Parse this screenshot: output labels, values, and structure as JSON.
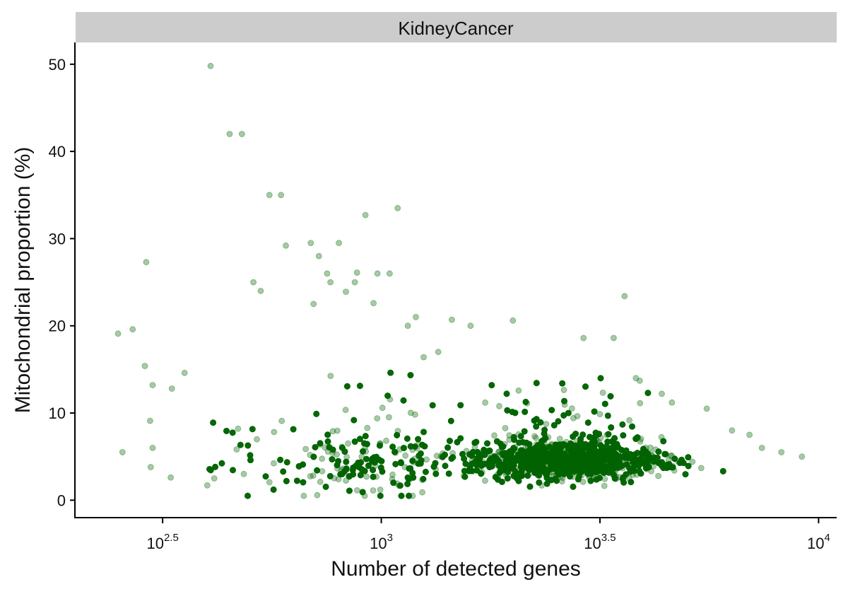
{
  "chart_data": {
    "type": "scatter",
    "facet_label": "KidneyCancer",
    "xlabel": "Number of detected genes",
    "ylabel": "Mitochondrial proportion (%)",
    "x_scale": "log10",
    "xlim": [
      200,
      11000
    ],
    "ylim": [
      -2,
      52.5
    ],
    "x_ticks": [
      {
        "value": 316.23,
        "base": "10",
        "exp": "2.5"
      },
      {
        "value": 1000,
        "base": "10",
        "exp": "3"
      },
      {
        "value": 3162.28,
        "base": "10",
        "exp": "3.5"
      },
      {
        "value": 10000,
        "base": "10",
        "exp": "4"
      }
    ],
    "y_ticks": [
      0,
      10,
      20,
      30,
      40,
      50
    ],
    "y_tick_labels": [
      "0",
      "10",
      "20",
      "30",
      "40",
      "50"
    ],
    "grid": false,
    "point_color": "#006400",
    "point_alpha": 0.35,
    "series": [
      {
        "x": [
          407,
          450,
          480,
          290,
          590,
          555,
          1090,
          920,
          800,
          690,
          720,
          752,
          765,
          1045,
          880,
          980,
          870,
          530,
          510,
          605,
          830,
          960,
          700,
          1200,
          1450,
          2000,
          1150,
          1600,
          3600,
          3400,
          355,
          332,
          300,
          288,
          296,
          300,
          256,
          250,
          330,
          270,
          297,
          400,
          415,
          3820,
          3900,
          4380,
          4620,
          5550,
          6340,
          6950,
          7420,
          8220,
          9160,
          2900,
          1250,
          1350
        ],
        "y": [
          49.8,
          42.0,
          42.0,
          27.3,
          35.0,
          35.0,
          33.5,
          32.7,
          29.5,
          29.5,
          28.0,
          26.0,
          25.0,
          26.0,
          26.1,
          26.0,
          25.0,
          24.0,
          25.0,
          29.2,
          23.9,
          22.6,
          22.5,
          21.0,
          20.7,
          20.6,
          20.0,
          20.0,
          23.4,
          18.6,
          14.6,
          12.8,
          13.2,
          15.4,
          9.1,
          6.0,
          5.5,
          19.1,
          2.6,
          19.6,
          3.8,
          1.7,
          2.5,
          14.0,
          13.7,
          12.2,
          11.2,
          10.5,
          8.0,
          7.5,
          6.0,
          5.5,
          5.0,
          18.6,
          16.4,
          17.0
        ]
      }
    ],
    "bulk_point_count": 7000
  }
}
